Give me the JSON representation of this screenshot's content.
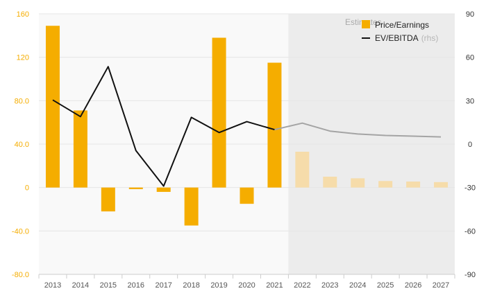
{
  "chart_data": {
    "type": "bar+line",
    "categories": [
      "2013",
      "2014",
      "2015",
      "2016",
      "2017",
      "2018",
      "2019",
      "2020",
      "2021",
      "2022",
      "2023",
      "2024",
      "2025",
      "2026",
      "2027"
    ],
    "estimates_start_index": 9,
    "estimates_label": "Estimates",
    "series": [
      {
        "name": "Price/Earnings",
        "type": "bar",
        "axis": "left",
        "values": [
          149,
          71,
          -22,
          -1.5,
          -4,
          -35,
          138,
          -15,
          115,
          33,
          10,
          8.5,
          6,
          5.5,
          5
        ]
      },
      {
        "name": "EV/EBITDA",
        "name_suffix": "(rhs)",
        "type": "line",
        "axis": "right",
        "values": [
          30.5,
          19,
          53.5,
          -4.5,
          -29,
          18.5,
          8,
          15.5,
          10,
          14.5,
          9,
          7,
          6,
          5.5,
          5
        ]
      }
    ],
    "y_left": {
      "ylim": [
        -80,
        160
      ],
      "ticks": [
        "160",
        "120",
        "80.0",
        "40.0",
        "0",
        "-40.0",
        "-80.0"
      ]
    },
    "y_right": {
      "ylim": [
        -90,
        90
      ],
      "ticks": [
        "90",
        "60",
        "30",
        "0",
        "-30",
        "-60",
        "-90"
      ]
    },
    "legend_position": "top-right",
    "grid": true
  },
  "colors": {
    "bar": "#f5ad00",
    "bar_estimate": "#f6dcaa",
    "line": "#111111",
    "line_estimate": "#a4a4a4",
    "estimate_bg": "#ececec",
    "plot_bg": "#f9f9f9",
    "left_axis_text": "#f5ad00",
    "right_axis_text": "#333333",
    "x_axis_text": "#555555"
  }
}
